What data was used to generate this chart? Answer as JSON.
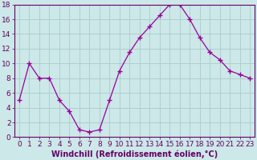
{
  "x": [
    0,
    1,
    2,
    3,
    4,
    5,
    6,
    7,
    8,
    9,
    10,
    11,
    12,
    13,
    14,
    15,
    16,
    17,
    18,
    19,
    20,
    21,
    22,
    23
  ],
  "y": [
    5,
    10,
    8,
    8,
    5,
    3.5,
    1,
    0.7,
    1,
    5,
    9,
    11.5,
    13.5,
    15,
    16.5,
    18,
    18,
    16,
    13.5,
    11.5,
    10.5,
    9,
    8.5,
    8
  ],
  "line_color": "#990099",
  "marker": "+",
  "marker_size": 4,
  "bg_color": "#cce8e8",
  "grid_color": "#aacccc",
  "tick_color": "#660066",
  "xlabel": "Windchill (Refroidissement éolien,°C)",
  "xlim_min": -0.5,
  "xlim_max": 23.5,
  "ylim_min": 0,
  "ylim_max": 18,
  "yticks": [
    0,
    2,
    4,
    6,
    8,
    10,
    12,
    14,
    16,
    18
  ],
  "xticks": [
    0,
    1,
    2,
    3,
    4,
    5,
    6,
    7,
    8,
    9,
    10,
    11,
    12,
    13,
    14,
    15,
    16,
    17,
    18,
    19,
    20,
    21,
    22,
    23
  ],
  "font_size": 6.5,
  "label_font_size": 7
}
